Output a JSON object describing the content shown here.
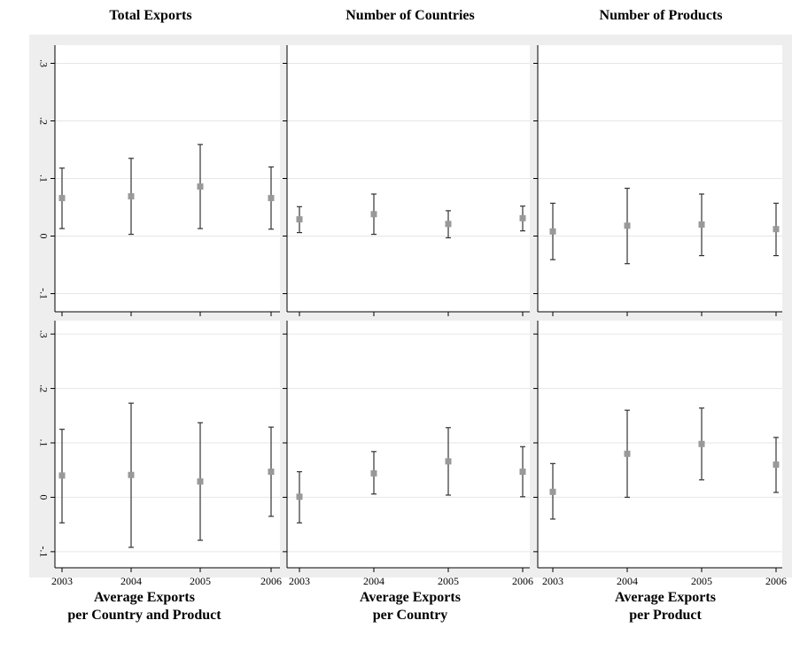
{
  "titles": {
    "top": [
      "Total Exports",
      "Number of Countries",
      "Number of Products"
    ],
    "bottom": [
      {
        "line1": "Average Exports",
        "line2": "per Country and Product"
      },
      {
        "line1": "Average Exports",
        "line2": "per Country"
      },
      {
        "line1": "Average Exports",
        "line2": "per Product"
      }
    ]
  },
  "chart_data": [
    {
      "type": "scatter",
      "title": "Total Exports",
      "x": [
        "2003",
        "2004",
        "2005",
        "2006"
      ],
      "values": [
        0.066,
        0.069,
        0.086,
        0.066
      ],
      "ci_low": [
        0.013,
        0.003,
        0.013,
        0.012
      ],
      "ci_high": [
        0.118,
        0.135,
        0.159,
        0.12
      ],
      "ylim": [
        -0.11,
        0.31
      ],
      "yticks": [
        ".3",
        ".2",
        ".1",
        "0",
        "-.1"
      ],
      "grid": true
    },
    {
      "type": "scatter",
      "title": "Number of Countries",
      "x": [
        "2003",
        "2004",
        "2005",
        "2006"
      ],
      "values": [
        0.029,
        0.038,
        0.021,
        0.031
      ],
      "ci_low": [
        0.006,
        0.003,
        -0.003,
        0.009
      ],
      "ci_high": [
        0.051,
        0.073,
        0.044,
        0.052
      ],
      "ylim": [
        -0.11,
        0.31
      ],
      "grid": true
    },
    {
      "type": "scatter",
      "title": "Number of Products",
      "x": [
        "2003",
        "2004",
        "2005",
        "2006"
      ],
      "values": [
        0.008,
        0.018,
        0.02,
        0.012
      ],
      "ci_low": [
        -0.041,
        -0.048,
        -0.034,
        -0.034
      ],
      "ci_high": [
        0.057,
        0.083,
        0.073,
        0.057
      ],
      "ylim": [
        -0.11,
        0.31
      ],
      "grid": true
    },
    {
      "type": "scatter",
      "title": "Average Exports per Country and Product",
      "x": [
        "2003",
        "2004",
        "2005",
        "2006"
      ],
      "values": [
        0.04,
        0.041,
        0.029,
        0.047
      ],
      "ci_low": [
        -0.047,
        -0.092,
        -0.079,
        -0.035
      ],
      "ci_high": [
        0.125,
        0.173,
        0.137,
        0.129
      ],
      "ylim": [
        -0.11,
        0.31
      ],
      "yticks": [
        ".3",
        ".2",
        ".1",
        "0",
        "-.1"
      ],
      "xticks": [
        "2003",
        "2004",
        "2005",
        "2006"
      ],
      "grid": true
    },
    {
      "type": "scatter",
      "title": "Average Exports per Country",
      "x": [
        "2003",
        "2004",
        "2005",
        "2006"
      ],
      "values": [
        0.001,
        0.044,
        0.066,
        0.047
      ],
      "ci_low": [
        -0.047,
        0.006,
        0.004,
        0.001
      ],
      "ci_high": [
        0.047,
        0.084,
        0.128,
        0.093
      ],
      "ylim": [
        -0.11,
        0.31
      ],
      "xticks": [
        "2003",
        "2004",
        "2005",
        "2006"
      ],
      "grid": true
    },
    {
      "type": "scatter",
      "title": "Average Exports per Product",
      "x": [
        "2003",
        "2004",
        "2005",
        "2006"
      ],
      "values": [
        0.01,
        0.08,
        0.098,
        0.06
      ],
      "ci_low": [
        -0.04,
        0.0,
        0.032,
        0.009
      ],
      "ci_high": [
        0.062,
        0.16,
        0.164,
        0.11
      ],
      "ylim": [
        -0.11,
        0.31
      ],
      "xticks": [
        "2003",
        "2004",
        "2005",
        "2006"
      ],
      "grid": true
    }
  ],
  "colors": {
    "background": "#eeeeee",
    "plot": "#ffffff",
    "grid": "#e6e6e6",
    "marker": "#999999",
    "line": "#333333"
  }
}
